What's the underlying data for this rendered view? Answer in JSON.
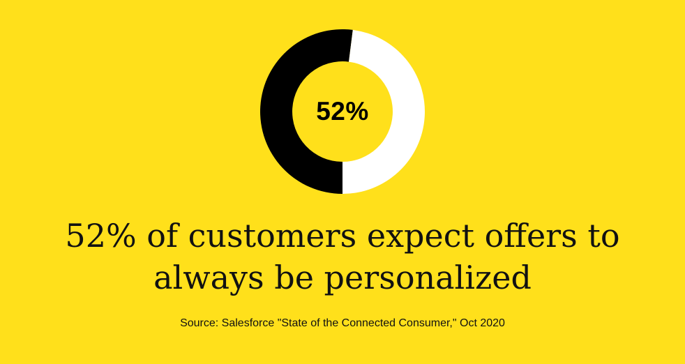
{
  "chart_data": {
    "type": "pie",
    "subtype": "donut",
    "center_label": "52%",
    "slices": [
      {
        "value": 52,
        "color": "#000000"
      },
      {
        "value": 48,
        "color": "#FFFFFF"
      }
    ],
    "background_color": "#FFE01B"
  },
  "headline": {
    "line1": "52% of customers expect offers to",
    "line2": "always be personalized"
  },
  "source": "Source: Salesforce \"State of the Connected Consumer,\" Oct 2020"
}
